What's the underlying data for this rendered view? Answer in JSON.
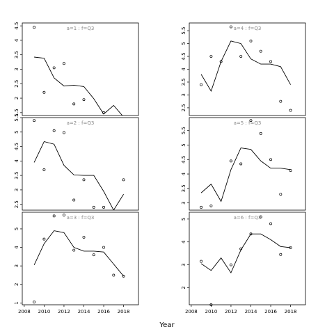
{
  "chart_data": {
    "type": "scatter",
    "xlabel": "Year",
    "x_ticks": [
      2008,
      2010,
      2012,
      2014,
      2016,
      2018
    ],
    "xlim": [
      2007.8,
      2019.5
    ],
    "panels": [
      {
        "label": "a=1 : f=Q3",
        "ylim": [
          1.4,
          4.6
        ],
        "y_ticks": [
          1.5,
          2.0,
          2.5,
          3.0,
          3.5,
          4.0,
          4.5
        ],
        "points": {
          "x": [
            2009,
            2010,
            2011,
            2012,
            2013,
            2014,
            2016
          ],
          "y": [
            4.45,
            2.2,
            3.05,
            3.2,
            1.8,
            1.95,
            1.5
          ]
        },
        "line": {
          "x": [
            2009,
            2010,
            2011,
            2012,
            2013,
            2014,
            2015,
            2016,
            2017,
            2018
          ],
          "y": [
            3.42,
            3.38,
            2.7,
            2.42,
            2.45,
            2.4,
            1.98,
            1.45,
            1.75,
            1.35
          ]
        }
      },
      {
        "label": "a=2 : f=Q3",
        "ylim": [
          2.3,
          5.5
        ],
        "y_ticks": [
          2.5,
          3.0,
          3.5,
          4.0,
          4.5,
          5.0,
          5.5
        ],
        "points": {
          "x": [
            2009,
            2010,
            2011,
            2012,
            2013,
            2014,
            2015,
            2016,
            2018
          ],
          "y": [
            5.4,
            3.7,
            5.05,
            4.98,
            2.65,
            3.35,
            2.4,
            2.4,
            3.35
          ]
        },
        "line": {
          "x": [
            2009,
            2010,
            2011,
            2012,
            2013,
            2014,
            2015,
            2016,
            2017,
            2018
          ],
          "y": [
            3.95,
            4.67,
            4.58,
            3.85,
            3.52,
            3.5,
            3.5,
            2.95,
            2.3,
            2.85
          ]
        }
      },
      {
        "label": "a=3 : f=Q3",
        "ylim": [
          0.9,
          5.9
        ],
        "y_ticks": [
          1,
          2,
          3,
          4,
          5
        ],
        "points": {
          "x": [
            2009,
            2010,
            2011,
            2012,
            2013,
            2014,
            2015,
            2016,
            2017,
            2018
          ],
          "y": [
            1.05,
            4.45,
            5.7,
            5.75,
            3.85,
            4.55,
            3.6,
            4.0,
            2.5,
            2.45
          ]
        },
        "line": {
          "x": [
            2009,
            2010,
            2011,
            2012,
            2013,
            2014,
            2015,
            2016,
            2017,
            2018
          ],
          "y": [
            3.05,
            4.2,
            4.9,
            4.8,
            4.0,
            3.8,
            3.8,
            3.75,
            3.1,
            2.45
          ]
        }
      },
      {
        "label": "a=4 : f=Q3",
        "ylim": [
          2.2,
          5.8
        ],
        "y_ticks": [
          2.5,
          3.0,
          3.5,
          4.0,
          4.5,
          5.0,
          5.5
        ],
        "points": {
          "x": [
            2009,
            2010,
            2011,
            2012,
            2013,
            2014,
            2015,
            2016,
            2017,
            2018
          ],
          "y": [
            3.4,
            4.5,
            4.3,
            5.65,
            4.5,
            5.1,
            4.7,
            4.3,
            2.75,
            2.4
          ]
        },
        "line": {
          "x": [
            2009,
            2010,
            2011,
            2012,
            2013,
            2014,
            2015,
            2016,
            2017,
            2018
          ],
          "y": [
            3.8,
            3.15,
            4.3,
            5.1,
            5.0,
            4.4,
            4.2,
            4.2,
            4.1,
            3.4
          ]
        }
      },
      {
        "label": "a=5 : f=Q3",
        "ylim": [
          2.75,
          5.95
        ],
        "y_ticks": [
          3.0,
          3.5,
          4.0,
          4.5,
          5.0,
          5.5
        ],
        "points": {
          "x": [
            2009,
            2010,
            2012,
            2013,
            2014,
            2015,
            2016,
            2017,
            2018
          ],
          "y": [
            2.85,
            2.9,
            4.45,
            4.35,
            5.85,
            5.4,
            4.5,
            3.3,
            4.12
          ]
        },
        "line": {
          "x": [
            2009,
            2010,
            2011,
            2012,
            2013,
            2014,
            2015,
            2016,
            2017,
            2018
          ],
          "y": [
            3.35,
            3.65,
            3.05,
            4.15,
            4.9,
            4.85,
            4.45,
            4.2,
            4.2,
            4.15
          ]
        }
      },
      {
        "label": "a=6 : f=Q3",
        "ylim": [
          1.25,
          5.3
        ],
        "y_ticks": [
          2,
          3,
          4,
          5
        ],
        "points": {
          "x": [
            2009,
            2010,
            2012,
            2013,
            2014,
            2015,
            2016,
            2017,
            2018
          ],
          "y": [
            3.15,
            1.25,
            3.0,
            3.7,
            4.35,
            5.1,
            4.8,
            3.45,
            3.75
          ]
        },
        "line": {
          "x": [
            2009,
            2010,
            2011,
            2012,
            2013,
            2014,
            2015,
            2016,
            2017,
            2018
          ],
          "y": [
            3.05,
            2.75,
            3.3,
            2.65,
            3.65,
            4.35,
            4.35,
            4.1,
            3.8,
            3.75
          ]
        }
      }
    ]
  }
}
